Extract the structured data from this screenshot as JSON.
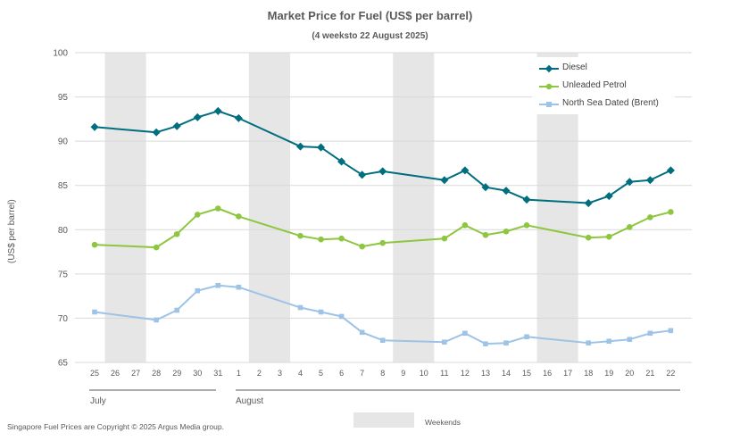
{
  "title": "Market Price for Fuel (US$ per barrel)",
  "subtitle": "(4 weeksto 22 August 2025)",
  "ylabel": "(US$ per barrel)",
  "copyright": "Singapore Fuel Prices are Copyright © 2025 Argus Media group.",
  "weekends_label": "Weekends",
  "months": [
    "July",
    "August"
  ],
  "colors": {
    "diesel": "#006e7f",
    "petrol": "#8dc63f",
    "brent": "#9dc3e6",
    "weekend": "#e6e6e6",
    "grid": "#d9d9d9"
  },
  "chart_data": {
    "type": "line",
    "title": "Market Price for Fuel (US$ per barrel)",
    "subtitle": "(4 weeksto 22 August 2025)",
    "ylabel": "(US$ per barrel)",
    "ylim": [
      65,
      100
    ],
    "yticks": [
      65,
      70,
      75,
      80,
      85,
      90,
      95,
      100
    ],
    "categories": [
      "25",
      "26",
      "27",
      "28",
      "29",
      "30",
      "31",
      "1",
      "2",
      "3",
      "4",
      "5",
      "6",
      "7",
      "8",
      "9",
      "10",
      "11",
      "12",
      "13",
      "14",
      "15",
      "16",
      "17",
      "18",
      "19",
      "20",
      "21",
      "22"
    ],
    "weekend_bands": [
      [
        "26",
        "27"
      ],
      [
        "2",
        "3"
      ],
      [
        "9",
        "10"
      ],
      [
        "16",
        "17"
      ]
    ],
    "grid": true,
    "legend_position": "top-right",
    "series": [
      {
        "name": "Diesel",
        "marker": "diamond",
        "points": [
          [
            "25",
            91.6
          ],
          [
            "28",
            91.0
          ],
          [
            "29",
            91.7
          ],
          [
            "30",
            92.7
          ],
          [
            "31",
            93.4
          ],
          [
            "1",
            92.6
          ],
          [
            "4",
            89.4
          ],
          [
            "5",
            89.3
          ],
          [
            "6",
            87.7
          ],
          [
            "7",
            86.2
          ],
          [
            "8",
            86.6
          ],
          [
            "11",
            85.6
          ],
          [
            "12",
            86.7
          ],
          [
            "13",
            84.8
          ],
          [
            "14",
            84.4
          ],
          [
            "15",
            83.4
          ],
          [
            "18",
            83.0
          ],
          [
            "19",
            83.8
          ],
          [
            "20",
            85.4
          ],
          [
            "21",
            85.6
          ],
          [
            "22",
            86.7
          ]
        ]
      },
      {
        "name": "Unleaded Petrol",
        "marker": "circle",
        "points": [
          [
            "25",
            78.3
          ],
          [
            "28",
            78.0
          ],
          [
            "29",
            79.5
          ],
          [
            "30",
            81.7
          ],
          [
            "31",
            82.4
          ],
          [
            "1",
            81.5
          ],
          [
            "4",
            79.3
          ],
          [
            "5",
            78.9
          ],
          [
            "6",
            79.0
          ],
          [
            "7",
            78.1
          ],
          [
            "8",
            78.5
          ],
          [
            "11",
            79.0
          ],
          [
            "12",
            80.5
          ],
          [
            "13",
            79.4
          ],
          [
            "14",
            79.8
          ],
          [
            "15",
            80.5
          ],
          [
            "18",
            79.1
          ],
          [
            "19",
            79.2
          ],
          [
            "20",
            80.3
          ],
          [
            "21",
            81.4
          ],
          [
            "22",
            82.0
          ]
        ]
      },
      {
        "name": "North Sea Dated (Brent)",
        "marker": "square",
        "points": [
          [
            "25",
            70.7
          ],
          [
            "28",
            69.8
          ],
          [
            "29",
            70.9
          ],
          [
            "30",
            73.1
          ],
          [
            "31",
            73.7
          ],
          [
            "1",
            73.5
          ],
          [
            "4",
            71.2
          ],
          [
            "5",
            70.7
          ],
          [
            "6",
            70.2
          ],
          [
            "7",
            68.4
          ],
          [
            "8",
            67.5
          ],
          [
            "11",
            67.3
          ],
          [
            "12",
            68.3
          ],
          [
            "13",
            67.1
          ],
          [
            "14",
            67.2
          ],
          [
            "15",
            67.9
          ],
          [
            "18",
            67.2
          ],
          [
            "19",
            67.4
          ],
          [
            "20",
            67.6
          ],
          [
            "21",
            68.3
          ],
          [
            "22",
            68.6
          ]
        ]
      }
    ]
  }
}
